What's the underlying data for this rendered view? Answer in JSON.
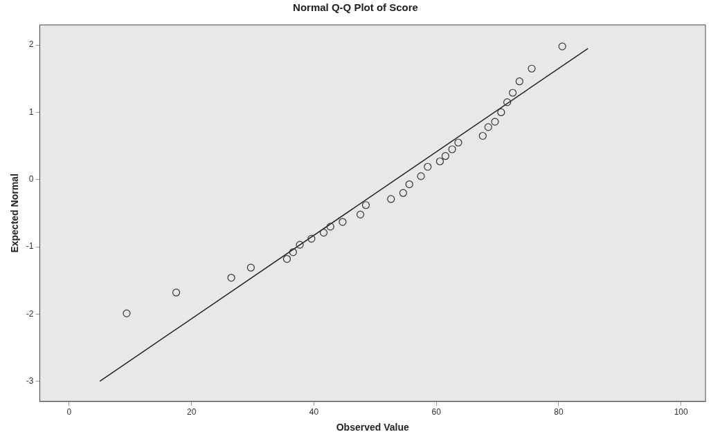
{
  "chart_data": {
    "type": "scatter",
    "title": "Normal Q-Q Plot of Score",
    "xlabel": "Observed Value",
    "ylabel": "Expected Normal",
    "xlim": [
      -4.8,
      104
    ],
    "xticks": [
      0,
      20,
      40,
      60,
      80,
      100
    ],
    "ylim": [
      -3.3,
      2.3
    ],
    "yticks": [
      -3,
      -2,
      -1,
      0,
      1,
      2
    ],
    "grid": false,
    "legend": false,
    "series": [
      {
        "marker": "circle",
        "color": "#333333",
        "x": [
          9.4,
          17.5,
          26.5,
          29.7,
          35.6,
          36.6,
          37.7,
          39.6,
          41.6,
          42.7,
          44.7,
          47.6,
          48.5,
          52.6,
          54.6,
          55.6,
          57.5,
          58.6,
          60.6,
          61.5,
          62.6,
          63.6,
          67.6,
          68.5,
          69.6,
          70.6,
          71.6,
          72.5,
          73.6,
          75.6,
          80.6
        ],
        "values": [
          -1.99,
          -1.68,
          -1.46,
          -1.31,
          -1.18,
          -1.08,
          -0.97,
          -0.88,
          -0.79,
          -0.7,
          -0.63,
          -0.52,
          -0.38,
          -0.29,
          -0.2,
          -0.07,
          0.05,
          0.19,
          0.27,
          0.35,
          0.45,
          0.55,
          0.65,
          0.78,
          0.86,
          1.0,
          1.15,
          1.29,
          1.46,
          1.65,
          1.98
        ]
      },
      {
        "type": "line",
        "marker": "none",
        "color": "#222222",
        "x": [
          5,
          84.8
        ],
        "values": [
          -3.0,
          1.95
        ]
      }
    ]
  }
}
